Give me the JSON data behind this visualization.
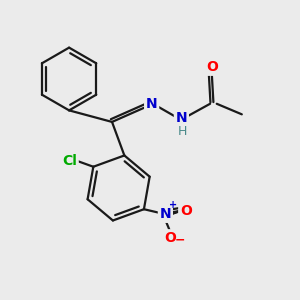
{
  "background_color": "#ebebeb",
  "bond_color": "#1a1a1a",
  "atom_colors": {
    "O": "#ff0000",
    "N": "#0000cd",
    "Cl": "#00aa00",
    "H": "#4a8a8a",
    "C": "#1a1a1a"
  },
  "font_size": 10,
  "bond_lw": 1.6
}
